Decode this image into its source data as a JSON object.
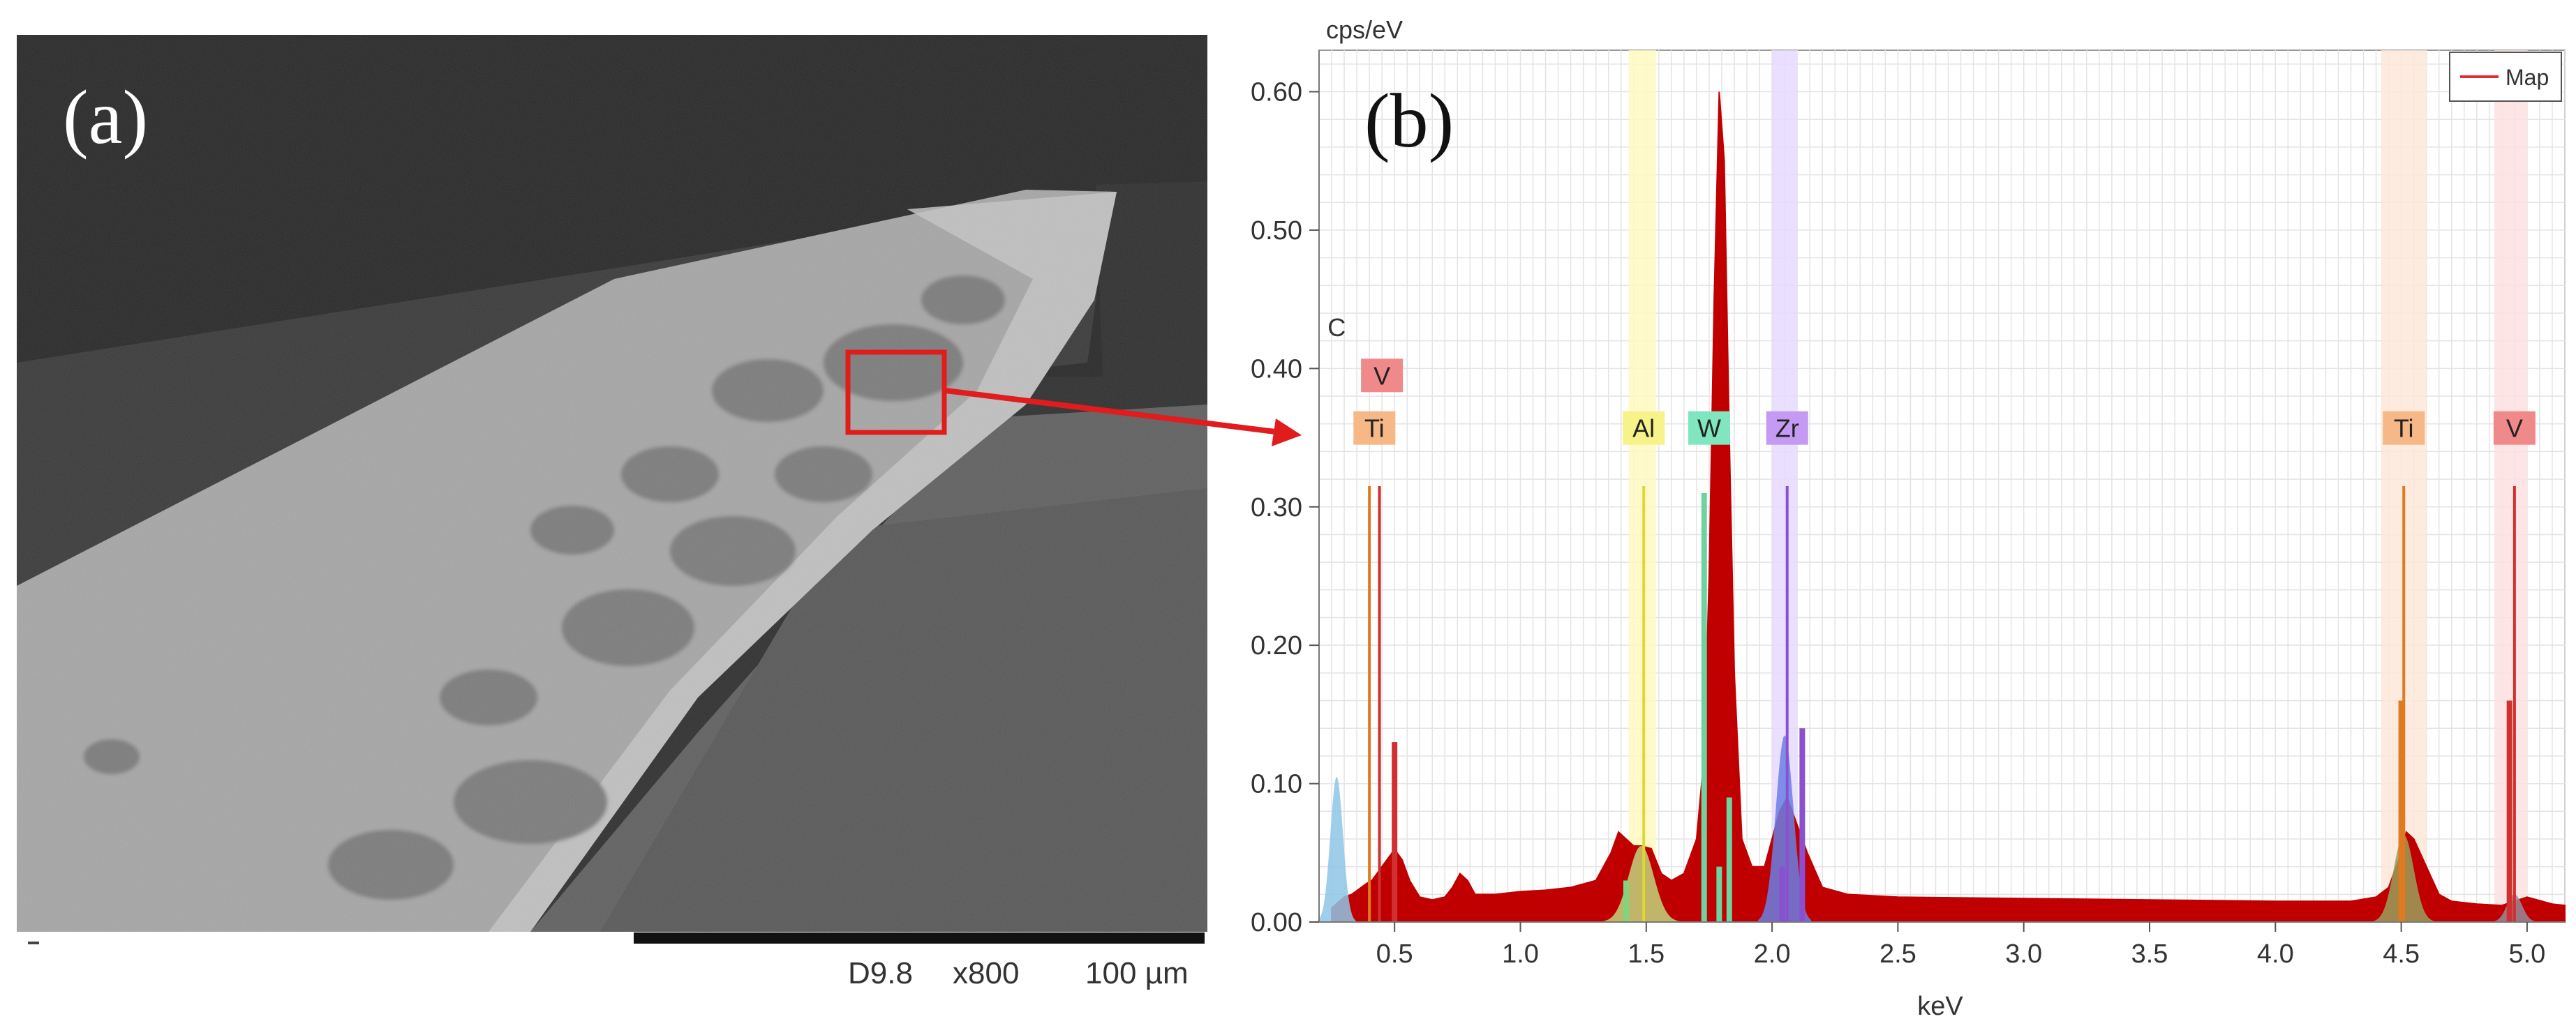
{
  "panel_a": {
    "label": "(a)",
    "scale_bar": {
      "detector": "D9.8",
      "magnification": "x800",
      "scale": "100 µm"
    }
  },
  "panel_b": {
    "label": "(b)"
  },
  "chart_data": {
    "type": "area",
    "ylabel": "cps/eV",
    "xlabel": "keV",
    "xlim": [
      0.2,
      5.15
    ],
    "ylim": [
      0,
      0.63
    ],
    "x_ticks": [
      "0.5",
      "1.0",
      "1.5",
      "2.0",
      "2.5",
      "3.0",
      "3.5",
      "4.0",
      "4.5",
      "5.0"
    ],
    "y_ticks": [
      "0.00",
      "0.10",
      "0.20",
      "0.30",
      "0.40",
      "0.50",
      "0.60"
    ],
    "legend": {
      "position": "top-right",
      "entries": [
        {
          "name": "Map",
          "color": "#e03030"
        }
      ]
    },
    "spectrum": {
      "name": "Map",
      "color": "#c00000",
      "x": [
        0.25,
        0.28,
        0.3,
        0.33,
        0.36,
        0.39,
        0.41,
        0.43,
        0.45,
        0.47,
        0.49,
        0.51,
        0.53,
        0.56,
        0.6,
        0.65,
        0.7,
        0.73,
        0.76,
        0.79,
        0.82,
        0.9,
        1.0,
        1.1,
        1.2,
        1.3,
        1.36,
        1.39,
        1.42,
        1.45,
        1.48,
        1.52,
        1.56,
        1.6,
        1.65,
        1.7,
        1.73,
        1.75,
        1.77,
        1.79,
        1.81,
        1.83,
        1.85,
        1.88,
        1.92,
        1.97,
        2.0,
        2.03,
        2.06,
        2.1,
        2.14,
        2.2,
        2.3,
        2.5,
        3.0,
        3.5,
        4.0,
        4.3,
        4.4,
        4.45,
        4.5,
        4.52,
        4.55,
        4.6,
        4.65,
        4.7,
        4.8,
        4.9,
        4.95,
        5.0,
        5.1,
        5.15
      ],
      "y": [
        0.01,
        0.015,
        0.018,
        0.02,
        0.024,
        0.028,
        0.03,
        0.035,
        0.04,
        0.045,
        0.05,
        0.05,
        0.045,
        0.03,
        0.018,
        0.016,
        0.018,
        0.025,
        0.035,
        0.03,
        0.02,
        0.02,
        0.022,
        0.023,
        0.025,
        0.03,
        0.05,
        0.065,
        0.06,
        0.055,
        0.055,
        0.053,
        0.035,
        0.03,
        0.035,
        0.06,
        0.12,
        0.25,
        0.45,
        0.6,
        0.55,
        0.35,
        0.18,
        0.06,
        0.04,
        0.04,
        0.06,
        0.08,
        0.09,
        0.07,
        0.05,
        0.025,
        0.02,
        0.018,
        0.017,
        0.016,
        0.015,
        0.015,
        0.018,
        0.025,
        0.05,
        0.065,
        0.06,
        0.04,
        0.02,
        0.015,
        0.013,
        0.012,
        0.015,
        0.018,
        0.013,
        0.012
      ]
    },
    "element_bands": [
      {
        "name": "Al",
        "x0": 1.43,
        "x1": 1.54,
        "color": "#fff9c0"
      },
      {
        "name": "Zr",
        "x0": 2.0,
        "x1": 2.1,
        "color": "#e6d9ff"
      },
      {
        "name": "Ti",
        "x0": 4.42,
        "x1": 4.6,
        "color": "#fce8d8"
      },
      {
        "name": "V",
        "x0": 4.87,
        "x1": 5.0,
        "color": "#fde0e0"
      }
    ],
    "element_labels": [
      {
        "text": "C",
        "x": 0.27,
        "y": 0.43,
        "bg": "none",
        "color": "#333333"
      },
      {
        "text": "V",
        "x": 0.45,
        "y": 0.395,
        "bg": "#f08a8a",
        "color": "#222222"
      },
      {
        "text": "Ti",
        "x": 0.42,
        "y": 0.357,
        "bg": "#f5b886",
        "color": "#222222"
      },
      {
        "text": "Al",
        "x": 1.49,
        "y": 0.357,
        "bg": "#f7f28a",
        "color": "#222222"
      },
      {
        "text": "W",
        "x": 1.75,
        "y": 0.357,
        "bg": "#7fe6c0",
        "color": "#222222"
      },
      {
        "text": "Zr",
        "x": 2.06,
        "y": 0.357,
        "bg": "#c49af2",
        "color": "#222222"
      },
      {
        "text": "Ti",
        "x": 4.51,
        "y": 0.357,
        "bg": "#f5b886",
        "color": "#222222"
      },
      {
        "text": "V",
        "x": 4.95,
        "y": 0.357,
        "bg": "#f08a8a",
        "color": "#222222"
      }
    ],
    "marker_lines": [
      {
        "element": "Ti",
        "x": 0.4,
        "y": 0.315,
        "color": "#e07a20"
      },
      {
        "element": "V",
        "x": 0.44,
        "y": 0.315,
        "color": "#d03030"
      },
      {
        "element": "Al",
        "x": 1.49,
        "y": 0.315,
        "color": "#e0d830"
      },
      {
        "element": "Zr",
        "x": 2.06,
        "y": 0.315,
        "color": "#8a50d0"
      },
      {
        "element": "Ti",
        "x": 4.51,
        "y": 0.315,
        "color": "#e07a20"
      },
      {
        "element": "V",
        "x": 4.95,
        "y": 0.315,
        "color": "#d03030"
      }
    ],
    "element_bars": [
      {
        "x": 0.5,
        "y": 0.13,
        "color": "#d03030"
      },
      {
        "x": 1.42,
        "y": 0.03,
        "color": "#7fd67f"
      },
      {
        "x": 1.73,
        "y": 0.31,
        "color": "#6ed3a0"
      },
      {
        "x": 1.79,
        "y": 0.04,
        "color": "#6ed3a0"
      },
      {
        "x": 1.83,
        "y": 0.09,
        "color": "#6ed3a0"
      },
      {
        "x": 2.04,
        "y": 0.04,
        "color": "#8a50d0"
      },
      {
        "x": 2.12,
        "y": 0.14,
        "color": "#8a50d0"
      },
      {
        "x": 4.5,
        "y": 0.16,
        "color": "#e07a20"
      },
      {
        "x": 4.93,
        "y": 0.16,
        "color": "#d03030"
      }
    ],
    "overlay_peaks": [
      {
        "element": "C",
        "color": "#8ec6e6",
        "center": 0.27,
        "height": 0.105,
        "width": 0.025
      },
      {
        "element": "Al",
        "color": "#bfd57a",
        "center": 1.48,
        "height": 0.055,
        "width": 0.05
      },
      {
        "element": "Zr",
        "color": "#6a7fe6",
        "center": 2.05,
        "height": 0.135,
        "width": 0.035
      },
      {
        "element": "Ti",
        "color": "#9aa05a",
        "center": 4.51,
        "height": 0.063,
        "width": 0.04
      },
      {
        "element": "V",
        "color": "#9a8a9a",
        "center": 4.95,
        "height": 0.02,
        "width": 0.03
      }
    ]
  }
}
